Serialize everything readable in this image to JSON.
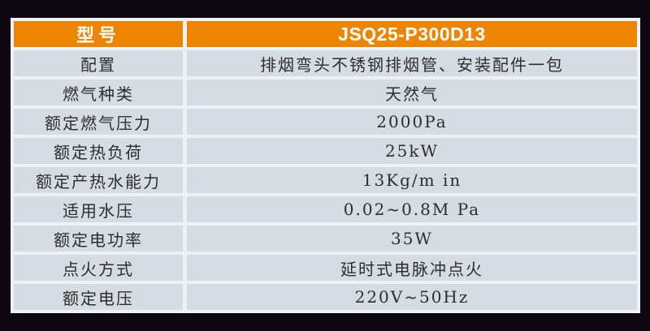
{
  "page": {
    "background_color": "#0e0711"
  },
  "table": {
    "frame_color": "#edf2f6",
    "row_bg_color": "#d6dce3",
    "header_bg_color": "#ee8500",
    "header_text_color": "#ffffff",
    "body_text_color": "#2e2e2e",
    "header": {
      "label": "型号",
      "value": "JSQ25-P300D13"
    },
    "rows": [
      {
        "label": "配置",
        "value": "排烟弯头不锈钢排烟管、安装配件一包"
      },
      {
        "label": "燃气种类",
        "value": "天然气"
      },
      {
        "label": "额定燃气压力",
        "value": "2000Pa"
      },
      {
        "label": "额定热负荷",
        "value": "25kW"
      },
      {
        "label": "额定产热水能力",
        "value": "13Kg/m in"
      },
      {
        "label": "适用水压",
        "value": "0.02~0.8M Pa"
      },
      {
        "label": "额定电功率",
        "value": "35W"
      },
      {
        "label": "点火方式",
        "value": "延时式电脉冲点火"
      },
      {
        "label": "额定电压",
        "value": "220V~50Hz"
      }
    ]
  }
}
